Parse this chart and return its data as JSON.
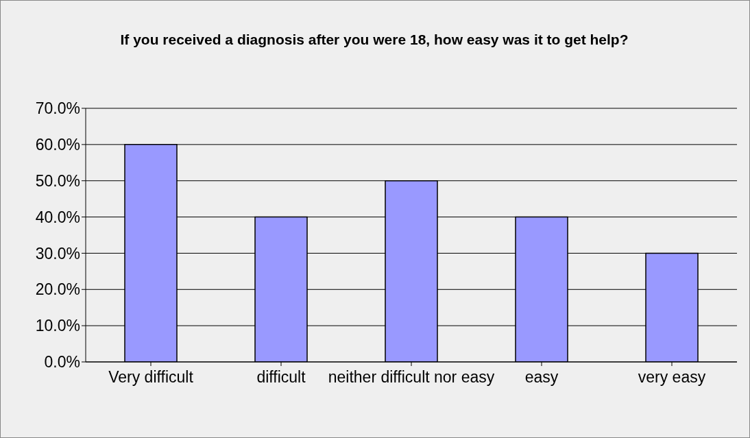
{
  "chart_data": {
    "type": "bar",
    "title": "If you received a diagnosis after you were 18, how easy was it to get help?",
    "categories": [
      "Very difficult",
      "difficult",
      "neither difficult nor easy",
      "easy",
      "very easy"
    ],
    "values": [
      60,
      40,
      50,
      40,
      30
    ],
    "color": "#9999ff",
    "ylim": [
      0,
      70
    ],
    "yticks": [
      {
        "value": 0,
        "label": "0.0%"
      },
      {
        "value": 10,
        "label": "10.0%"
      },
      {
        "value": 20,
        "label": "20.0%"
      },
      {
        "value": 30,
        "label": "30.0%"
      },
      {
        "value": 40,
        "label": "40.0%"
      },
      {
        "value": 50,
        "label": "50.0%"
      },
      {
        "value": 60,
        "label": "60.0%"
      },
      {
        "value": 70,
        "label": "70.0%"
      }
    ],
    "grid": "y"
  }
}
